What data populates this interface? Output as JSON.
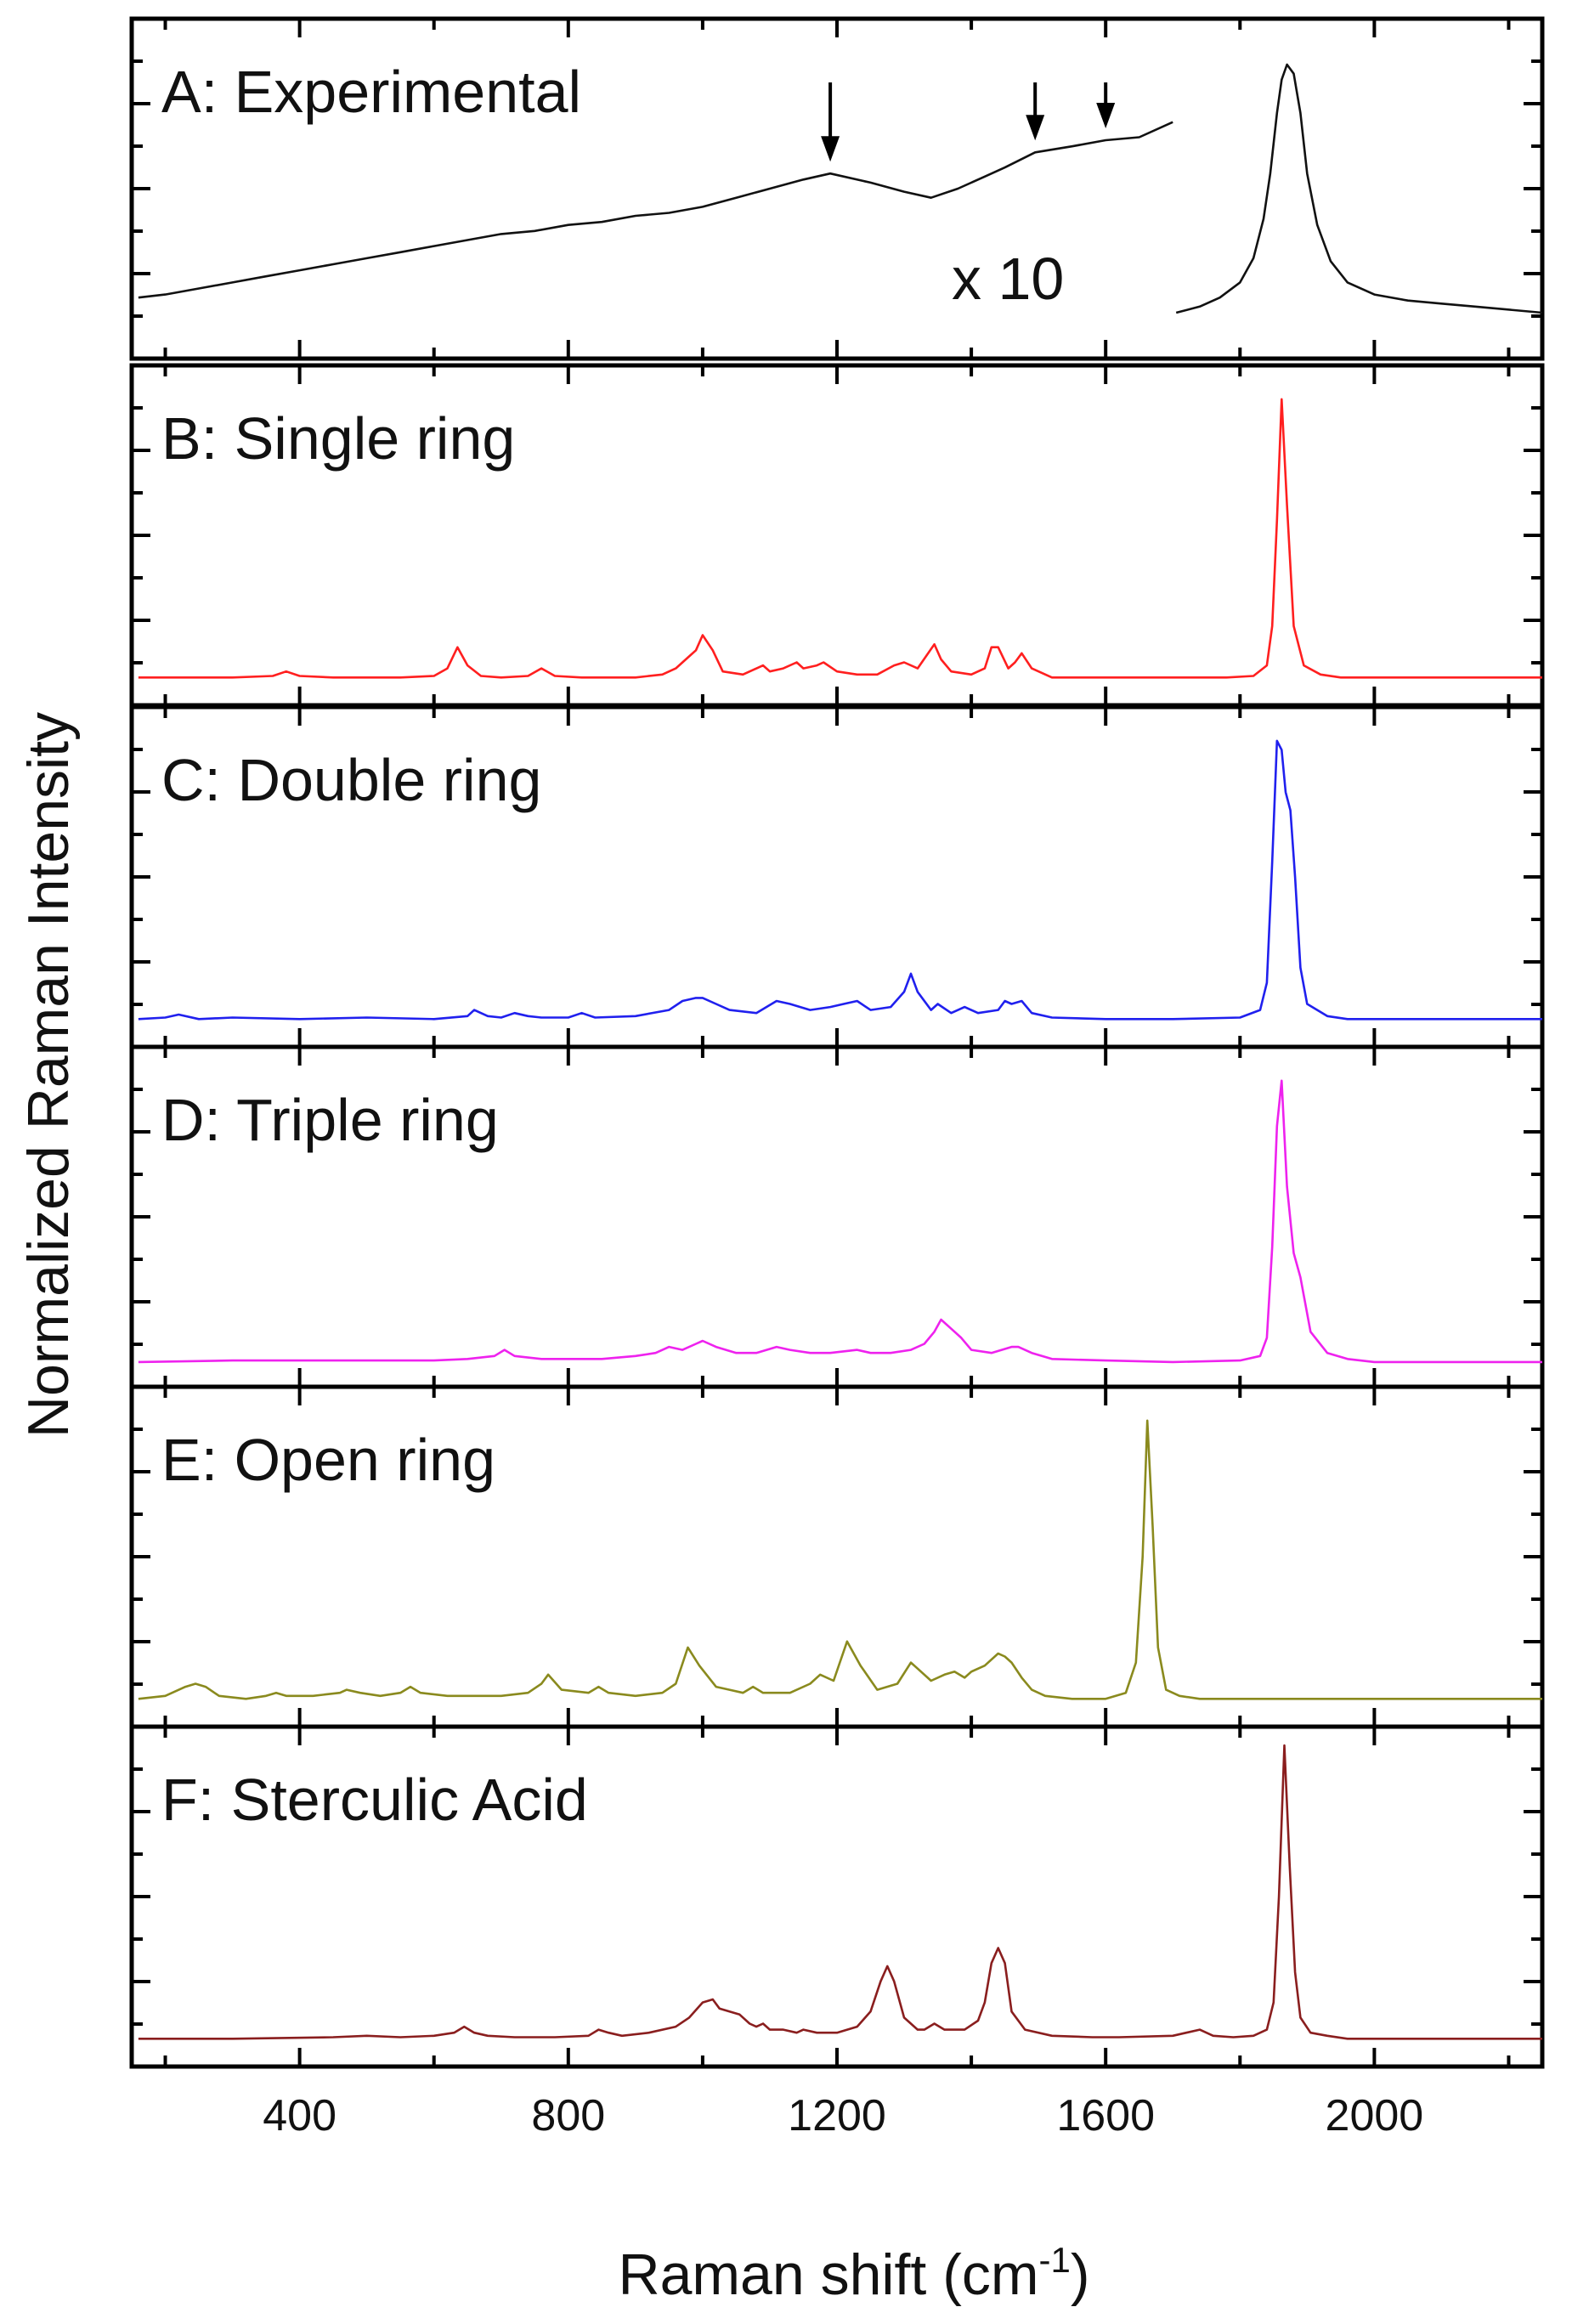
{
  "chart_data": {
    "type": "line",
    "title": "",
    "xlabel": "Raman shift (cm",
    "xlabel_superscript": "-1",
    "xlabel_suffix": ")",
    "ylabel": "Normalized Raman Intensity",
    "xlim": [
      150,
      2250
    ],
    "ylim": [
      0,
      1
    ],
    "xticks": [
      400,
      800,
      1200,
      1600,
      2000
    ],
    "tick_labels": [
      "400",
      "800",
      "1200",
      "1600",
      "2000"
    ],
    "minor_tick_step": 200,
    "grid": false,
    "panels": [
      {
        "id": "A",
        "label": "A: Experimental",
        "color": "#111111",
        "annotation": "x 10",
        "arrows_at": [
          1190,
          1495,
          1600
        ],
        "segments": [
          {
            "x": [
              160,
              200,
              250,
              300,
              350,
              400,
              450,
              500,
              550,
              600,
              650,
              700,
              750,
              800,
              850,
              900,
              950,
              1000,
              1050,
              1100,
              1150,
              1190,
              1250,
              1300,
              1340,
              1380,
              1420,
              1450,
              1495,
              1550,
              1600,
              1650,
              1700
            ],
            "y": [
              0.14,
              0.15,
              0.17,
              0.19,
              0.21,
              0.23,
              0.25,
              0.27,
              0.29,
              0.31,
              0.33,
              0.35,
              0.36,
              0.38,
              0.39,
              0.41,
              0.42,
              0.44,
              0.47,
              0.5,
              0.53,
              0.55,
              0.52,
              0.49,
              0.47,
              0.5,
              0.54,
              0.57,
              0.62,
              0.64,
              0.66,
              0.67,
              0.72
            ]
          },
          {
            "x": [
              1705,
              1740,
              1770,
              1800,
              1820,
              1835,
              1845,
              1855,
              1862,
              1870,
              1880,
              1890,
              1900,
              1915,
              1935,
              1960,
              2000,
              2050,
              2100,
              2150,
              2250
            ],
            "y": [
              0.09,
              0.11,
              0.14,
              0.19,
              0.27,
              0.4,
              0.55,
              0.75,
              0.86,
              0.91,
              0.88,
              0.75,
              0.55,
              0.38,
              0.26,
              0.19,
              0.15,
              0.13,
              0.12,
              0.11,
              0.09
            ]
          }
        ]
      },
      {
        "id": "B",
        "label": "B: Single ring",
        "color": "#ff1f1f",
        "segments": [
          {
            "x": [
              160,
              200,
              300,
              360,
              380,
              400,
              450,
              500,
              550,
              600,
              620,
              635,
              650,
              670,
              700,
              740,
              760,
              780,
              820,
              860,
              900,
              940,
              960,
              980,
              990,
              1000,
              1015,
              1030,
              1060,
              1090,
              1100,
              1120,
              1140,
              1150,
              1170,
              1180,
              1200,
              1230,
              1260,
              1285,
              1300,
              1320,
              1345,
              1355,
              1370,
              1400,
              1420,
              1430,
              1440,
              1455,
              1465,
              1475,
              1490,
              1520,
              1600,
              1700,
              1780,
              1820,
              1840,
              1848,
              1855,
              1862,
              1870,
              1880,
              1895,
              1920,
              1950,
              2000,
              2100,
              2250
            ],
            "y": [
              0.03,
              0.03,
              0.03,
              0.035,
              0.05,
              0.035,
              0.03,
              0.03,
              0.03,
              0.035,
              0.06,
              0.13,
              0.07,
              0.035,
              0.03,
              0.035,
              0.06,
              0.035,
              0.03,
              0.03,
              0.03,
              0.04,
              0.06,
              0.1,
              0.12,
              0.17,
              0.12,
              0.05,
              0.04,
              0.07,
              0.05,
              0.06,
              0.08,
              0.06,
              0.07,
              0.08,
              0.05,
              0.04,
              0.04,
              0.07,
              0.08,
              0.06,
              0.14,
              0.09,
              0.05,
              0.04,
              0.06,
              0.13,
              0.13,
              0.06,
              0.08,
              0.11,
              0.06,
              0.03,
              0.03,
              0.03,
              0.03,
              0.035,
              0.07,
              0.2,
              0.55,
              0.95,
              0.6,
              0.2,
              0.07,
              0.04,
              0.03,
              0.03,
              0.03,
              0.03
            ]
          }
        ]
      },
      {
        "id": "C",
        "label": "C: Double ring",
        "color": "#2020ee",
        "segments": [
          {
            "x": [
              160,
              200,
              220,
              250,
              300,
              400,
              500,
              600,
              650,
              660,
              680,
              700,
              720,
              740,
              760,
              800,
              820,
              840,
              900,
              950,
              970,
              990,
              1000,
              1020,
              1040,
              1080,
              1110,
              1130,
              1160,
              1190,
              1210,
              1230,
              1250,
              1280,
              1300,
              1310,
              1320,
              1340,
              1350,
              1370,
              1390,
              1410,
              1440,
              1450,
              1460,
              1475,
              1490,
              1520,
              1600,
              1700,
              1800,
              1830,
              1840,
              1848,
              1855,
              1862,
              1868,
              1875,
              1882,
              1890,
              1900,
              1930,
              1960,
              2000,
              2100,
              2250
            ],
            "y": [
              0.03,
              0.035,
              0.045,
              0.03,
              0.035,
              0.03,
              0.035,
              0.03,
              0.04,
              0.06,
              0.04,
              0.035,
              0.05,
              0.04,
              0.035,
              0.035,
              0.05,
              0.035,
              0.04,
              0.06,
              0.09,
              0.1,
              0.1,
              0.08,
              0.06,
              0.05,
              0.09,
              0.08,
              0.06,
              0.07,
              0.08,
              0.09,
              0.06,
              0.07,
              0.12,
              0.18,
              0.12,
              0.06,
              0.08,
              0.05,
              0.07,
              0.05,
              0.06,
              0.09,
              0.08,
              0.09,
              0.05,
              0.035,
              0.03,
              0.03,
              0.035,
              0.06,
              0.15,
              0.55,
              0.95,
              0.92,
              0.78,
              0.72,
              0.5,
              0.2,
              0.08,
              0.04,
              0.03,
              0.03,
              0.03,
              0.03
            ]
          }
        ]
      },
      {
        "id": "D",
        "label": "D: Triple ring",
        "color": "#ee22ee",
        "segments": [
          {
            "x": [
              160,
              300,
              500,
              600,
              650,
              690,
              705,
              720,
              760,
              800,
              850,
              900,
              930,
              950,
              970,
              990,
              1000,
              1020,
              1050,
              1080,
              1110,
              1130,
              1160,
              1190,
              1230,
              1250,
              1280,
              1310,
              1330,
              1345,
              1355,
              1370,
              1385,
              1400,
              1430,
              1460,
              1470,
              1490,
              1520,
              1600,
              1700,
              1800,
              1830,
              1840,
              1848,
              1855,
              1862,
              1870,
              1880,
              1890,
              1905,
              1930,
              1960,
              2000,
              2100,
              2250
            ],
            "y": [
              0.02,
              0.025,
              0.025,
              0.025,
              0.03,
              0.04,
              0.06,
              0.04,
              0.03,
              0.03,
              0.03,
              0.04,
              0.05,
              0.07,
              0.06,
              0.08,
              0.09,
              0.07,
              0.05,
              0.05,
              0.07,
              0.06,
              0.05,
              0.05,
              0.06,
              0.05,
              0.05,
              0.06,
              0.08,
              0.12,
              0.16,
              0.13,
              0.1,
              0.06,
              0.05,
              0.07,
              0.07,
              0.05,
              0.03,
              0.025,
              0.02,
              0.025,
              0.04,
              0.1,
              0.4,
              0.8,
              0.95,
              0.6,
              0.38,
              0.3,
              0.12,
              0.05,
              0.03,
              0.02,
              0.02,
              0.02
            ]
          }
        ]
      },
      {
        "id": "E",
        "label": "E: Open ring",
        "color": "#8a8a1e",
        "segments": [
          {
            "x": [
              160,
              200,
              230,
              245,
              260,
              280,
              320,
              350,
              365,
              380,
              420,
              460,
              470,
              490,
              520,
              550,
              565,
              580,
              620,
              660,
              700,
              740,
              760,
              770,
              790,
              830,
              845,
              860,
              900,
              940,
              960,
              978,
              995,
              1020,
              1040,
              1060,
              1075,
              1090,
              1130,
              1160,
              1175,
              1195,
              1215,
              1235,
              1260,
              1290,
              1310,
              1320,
              1340,
              1360,
              1375,
              1390,
              1400,
              1420,
              1440,
              1450,
              1460,
              1475,
              1490,
              1510,
              1550,
              1600,
              1630,
              1645,
              1655,
              1662,
              1670,
              1678,
              1690,
              1710,
              1740,
              1800,
              1900,
              2000,
              2100,
              2250
            ],
            "y": [
              0.03,
              0.04,
              0.07,
              0.08,
              0.07,
              0.04,
              0.03,
              0.04,
              0.05,
              0.04,
              0.04,
              0.05,
              0.06,
              0.05,
              0.04,
              0.05,
              0.07,
              0.05,
              0.04,
              0.04,
              0.04,
              0.05,
              0.08,
              0.11,
              0.06,
              0.05,
              0.07,
              0.05,
              0.04,
              0.05,
              0.08,
              0.2,
              0.14,
              0.07,
              0.06,
              0.05,
              0.07,
              0.05,
              0.05,
              0.08,
              0.11,
              0.09,
              0.22,
              0.14,
              0.06,
              0.08,
              0.15,
              0.13,
              0.09,
              0.11,
              0.12,
              0.1,
              0.12,
              0.14,
              0.18,
              0.17,
              0.15,
              0.1,
              0.06,
              0.04,
              0.03,
              0.03,
              0.05,
              0.15,
              0.5,
              0.95,
              0.6,
              0.2,
              0.06,
              0.04,
              0.03,
              0.03,
              0.03,
              0.03,
              0.03,
              0.03
            ]
          }
        ]
      },
      {
        "id": "F",
        "label": "F: Sterculic Acid",
        "color": "#8a1e1e",
        "segments": [
          {
            "x": [
              160,
              300,
              450,
              500,
              550,
              600,
              630,
              645,
              660,
              680,
              720,
              780,
              830,
              845,
              860,
              880,
              920,
              960,
              980,
              1000,
              1015,
              1025,
              1040,
              1055,
              1070,
              1080,
              1090,
              1100,
              1120,
              1140,
              1150,
              1170,
              1200,
              1230,
              1250,
              1265,
              1275,
              1285,
              1300,
              1320,
              1330,
              1345,
              1360,
              1390,
              1410,
              1420,
              1430,
              1440,
              1450,
              1460,
              1480,
              1520,
              1580,
              1620,
              1700,
              1740,
              1760,
              1790,
              1820,
              1840,
              1850,
              1858,
              1866,
              1874,
              1882,
              1890,
              1905,
              1930,
              1960,
              2000,
              2100,
              2250
            ],
            "y": [
              0.03,
              0.03,
              0.035,
              0.04,
              0.035,
              0.04,
              0.05,
              0.07,
              0.05,
              0.04,
              0.035,
              0.035,
              0.04,
              0.06,
              0.05,
              0.04,
              0.05,
              0.07,
              0.1,
              0.15,
              0.16,
              0.13,
              0.12,
              0.11,
              0.08,
              0.07,
              0.08,
              0.06,
              0.06,
              0.05,
              0.06,
              0.05,
              0.05,
              0.07,
              0.12,
              0.22,
              0.27,
              0.22,
              0.1,
              0.06,
              0.06,
              0.08,
              0.06,
              0.06,
              0.09,
              0.15,
              0.28,
              0.33,
              0.28,
              0.12,
              0.06,
              0.04,
              0.035,
              0.035,
              0.04,
              0.06,
              0.04,
              0.035,
              0.04,
              0.06,
              0.15,
              0.5,
              1.0,
              0.6,
              0.25,
              0.1,
              0.05,
              0.04,
              0.03,
              0.03,
              0.03,
              0.03
            ]
          }
        ]
      }
    ]
  }
}
